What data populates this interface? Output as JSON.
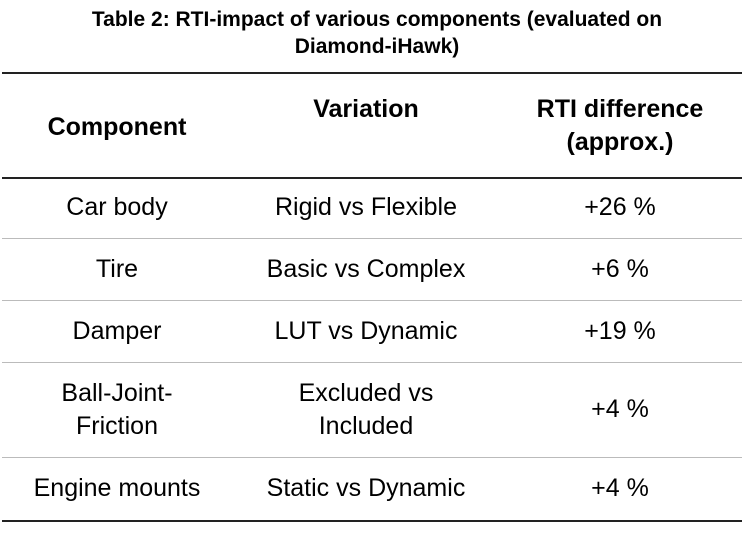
{
  "title": "Table 2: RTI-impact of various components (evaluated on\nDiamond-iHawk)",
  "table": {
    "header": [
      "Component",
      "Variation",
      "RTI difference\n(approx.)"
    ],
    "rows": [
      [
        "Car body",
        "Rigid vs Flexible",
        "+26 %"
      ],
      [
        "Tire",
        "Basic vs Complex",
        "+6 %"
      ],
      [
        "Damper",
        "LUT vs Dynamic",
        "+19 %"
      ],
      [
        "Ball-Joint-\nFriction",
        "Excluded vs\nIncluded",
        "+4 %"
      ],
      [
        "Engine mounts",
        "Static vs Dynamic",
        "+4 %"
      ]
    ]
  }
}
